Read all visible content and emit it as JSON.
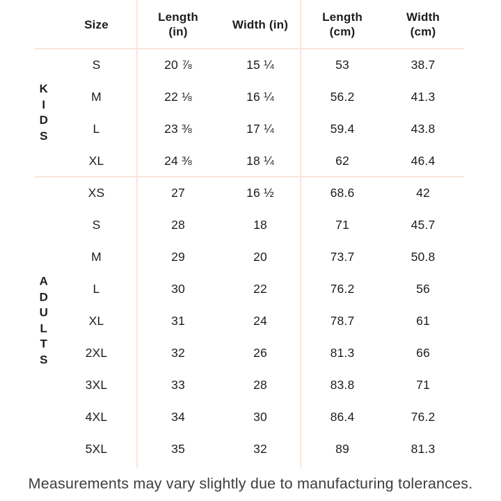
{
  "chart_data": {
    "type": "table",
    "columns": [
      {
        "lines": [
          "Size"
        ]
      },
      {
        "lines": [
          "Length",
          "(in)"
        ]
      },
      {
        "lines": [
          "Width (in)"
        ]
      },
      {
        "lines": [
          "Length",
          "(cm)"
        ]
      },
      {
        "lines": [
          "Width",
          "(cm)"
        ]
      }
    ],
    "sections": [
      {
        "group": "KIDS",
        "rows": [
          {
            "size": "S",
            "length_in": "20 ⅞",
            "width_in": "15 ¼",
            "length_cm": "53",
            "width_cm": "38.7"
          },
          {
            "size": "M",
            "length_in": "22 ⅛",
            "width_in": "16 ¼",
            "length_cm": "56.2",
            "width_cm": "41.3"
          },
          {
            "size": "L",
            "length_in": "23 ⅜",
            "width_in": "17 ¼",
            "length_cm": "59.4",
            "width_cm": "43.8"
          },
          {
            "size": "XL",
            "length_in": "24 ⅜",
            "width_in": "18 ¼",
            "length_cm": "62",
            "width_cm": "46.4"
          }
        ]
      },
      {
        "group": "ADULTS",
        "rows": [
          {
            "size": "XS",
            "length_in": "27",
            "width_in": "16 ½",
            "length_cm": "68.6",
            "width_cm": "42"
          },
          {
            "size": "S",
            "length_in": "28",
            "width_in": "18",
            "length_cm": "71",
            "width_cm": "45.7"
          },
          {
            "size": "M",
            "length_in": "29",
            "width_in": "20",
            "length_cm": "73.7",
            "width_cm": "50.8"
          },
          {
            "size": "L",
            "length_in": "30",
            "width_in": "22",
            "length_cm": "76.2",
            "width_cm": "56"
          },
          {
            "size": "XL",
            "length_in": "31",
            "width_in": "24",
            "length_cm": "78.7",
            "width_cm": "61"
          },
          {
            "size": "2XL",
            "length_in": "32",
            "width_in": "26",
            "length_cm": "81.3",
            "width_cm": "66"
          },
          {
            "size": "3XL",
            "length_in": "33",
            "width_in": "28",
            "length_cm": "83.8",
            "width_cm": "71"
          },
          {
            "size": "4XL",
            "length_in": "34",
            "width_in": "30",
            "length_cm": "86.4",
            "width_cm": "76.2"
          },
          {
            "size": "5XL",
            "length_in": "35",
            "width_in": "32",
            "length_cm": "89",
            "width_cm": "81.3"
          }
        ]
      }
    ]
  },
  "footer": {
    "note": "Measurements may vary slightly due to manufacturing tolerances."
  },
  "colors": {
    "divider": "#fbe5da",
    "text": "#1d1d1d",
    "footer_text": "#3d3d3d",
    "background": "#ffffff"
  }
}
